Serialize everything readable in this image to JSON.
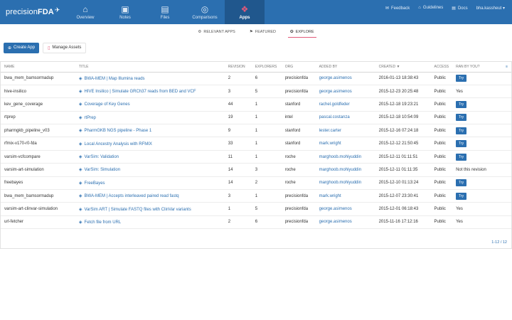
{
  "brand": {
    "name_a": "precision",
    "name_b": "FDA"
  },
  "nav": [
    {
      "label": "Overview",
      "icon": "house-icon",
      "active": false
    },
    {
      "label": "Notes",
      "icon": "note-icon",
      "active": false
    },
    {
      "label": "Files",
      "icon": "file-icon",
      "active": false
    },
    {
      "label": "Comparisons",
      "icon": "target-icon",
      "active": false
    },
    {
      "label": "Apps",
      "icon": "apps-icon",
      "active": true
    }
  ],
  "header_links": {
    "feedback": "Feedback",
    "guidelines": "Guidelines",
    "docs": "Docs",
    "user": "bha.kassheut ▾"
  },
  "subnav": {
    "relevant": "RELEVANT APPS",
    "featured": "FEATURED",
    "explore": "EXPLORE"
  },
  "actions": {
    "create": "Create App",
    "manage": "Manage Assets"
  },
  "columns": [
    "NAME",
    "TITLE",
    "REVISION",
    "EXPLORERS",
    "ORG",
    "ADDED BY",
    "CREATED ▼",
    "ACCESS",
    "RAN BY YOU?"
  ],
  "rows": [
    {
      "name": "bwa_mem_bamsormadup",
      "title": "BWA-MEM | Map Illumina reads",
      "revision": "2",
      "explorers": "6",
      "org": "precisionfda",
      "added_by": "george.asimenos",
      "created": "2016-01-13 18:38:43",
      "access": "Public",
      "ran": "Try"
    },
    {
      "name": "hive-insilico",
      "title": "HIVE Insilico | Simulate GRCh37 reads from BED and VCF",
      "revision": "3",
      "explorers": "5",
      "org": "precisionfda",
      "added_by": "george.asimenos",
      "created": "2015-12-23 20:25:48",
      "access": "Public",
      "ran": "Yes"
    },
    {
      "name": "kev_gene_coverage",
      "title": "Coverage of Key Genes",
      "revision": "44",
      "explorers": "1",
      "org": "stanford",
      "added_by": "rachel.goldfeder",
      "created": "2015-12-18 19:23:21",
      "access": "Public",
      "ran": "Try"
    },
    {
      "name": "rtprep",
      "title": "rtPrep",
      "revision": "19",
      "explorers": "1",
      "org": "intel",
      "added_by": "pascal.costanza",
      "created": "2015-12-18 10:54:09",
      "access": "Public",
      "ran": "Try"
    },
    {
      "name": "pharmgkb_pipeline_v03",
      "title": "PharmGKB NGS pipeline - Phase 1",
      "revision": "9",
      "explorers": "1",
      "org": "stanford",
      "added_by": "lester.carter",
      "created": "2015-12-16 07:24:18",
      "access": "Public",
      "ran": "Try"
    },
    {
      "name": "rfmix-v170-r0-fda",
      "title": "Local Ancestry Analysis with RFMIX",
      "revision": "33",
      "explorers": "1",
      "org": "stanford",
      "added_by": "mark.wright",
      "created": "2015-12-12 21:50:45",
      "access": "Public",
      "ran": "Try"
    },
    {
      "name": "varsim-vcfcompare",
      "title": "VarSim: Validation",
      "revision": "11",
      "explorers": "1",
      "org": "roche",
      "added_by": "marghoob.mohiyuddin",
      "created": "2015-12-11 01:11:51",
      "access": "Public",
      "ran": "Try"
    },
    {
      "name": "varsim-art-simulation",
      "title": "VarSim: Simulation",
      "revision": "14",
      "explorers": "3",
      "org": "roche",
      "added_by": "marghoob.mohiyuddin",
      "created": "2015-12-11 01:11:35",
      "access": "Public",
      "ran": "Not this revision"
    },
    {
      "name": "freebayes",
      "title": "FreeBayes",
      "revision": "14",
      "explorers": "2",
      "org": "roche",
      "added_by": "marghoob.mohiyuddin",
      "created": "2015-12-10 01:13:24",
      "access": "Public",
      "ran": "Try"
    },
    {
      "name": "bwa_mem_bamsormadup",
      "title": "BWA-MEM | Accepts interleaved paired read fastq",
      "revision": "3",
      "explorers": "1",
      "org": "precisionfda",
      "added_by": "mark.wright",
      "created": "2015-12-07 23:30:41",
      "access": "Public",
      "ran": "Try"
    },
    {
      "name": "varsim-art-clinvar-simulation",
      "title": "VarSim ART | Simulate FASTQ files with ClinVar variants",
      "revision": "1",
      "explorers": "5",
      "org": "precisionfda",
      "added_by": "george.asimenos",
      "created": "2015-12-01 06:18:43",
      "access": "Public",
      "ran": "Yes"
    },
    {
      "name": "url-fetcher",
      "title": "Fetch file from URL",
      "revision": "2",
      "explorers": "6",
      "org": "precisionfda",
      "added_by": "george.asimenos",
      "created": "2015-11-16 17:12:16",
      "access": "Public",
      "ran": "Yes"
    }
  ],
  "pager": "1-12 / 12"
}
